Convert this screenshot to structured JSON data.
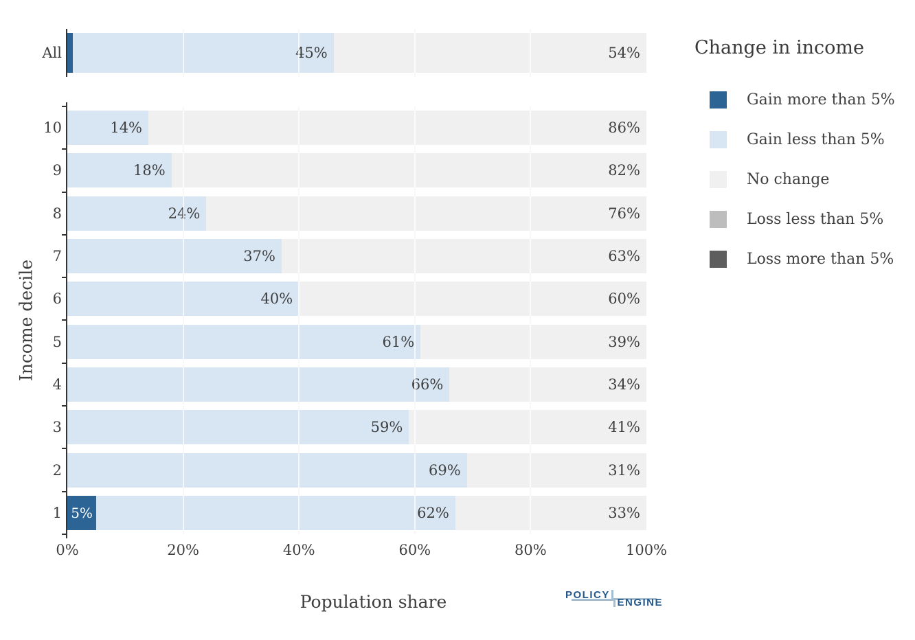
{
  "chart_data": {
    "type": "bar",
    "orientation": "horizontal",
    "stacked": true,
    "title": "",
    "xlabel": "Population share",
    "ylabel": "Income decile",
    "xlim": [
      0,
      100
    ],
    "x_ticks": [
      "0%",
      "20%",
      "40%",
      "60%",
      "80%",
      "100%"
    ],
    "gridline_positions_pct": [
      20,
      40,
      60,
      80
    ],
    "legend_title": "Change in income",
    "legend": [
      {
        "label": "Gain more than 5%",
        "color": "#2C6496"
      },
      {
        "label": "Gain less than 5%",
        "color": "#D8E6F3"
      },
      {
        "label": "No change",
        "color": "#F0F0F0"
      },
      {
        "label": "Loss less than 5%",
        "color": "#BDBDBD"
      },
      {
        "label": "Loss more than 5%",
        "color": "#5E5E5E"
      }
    ],
    "categories": [
      "All",
      "10",
      "9",
      "8",
      "7",
      "6",
      "5",
      "4",
      "3",
      "2",
      "1"
    ],
    "series": [
      {
        "name": "Gain more than 5%",
        "values": [
          1,
          0,
          0,
          0,
          0,
          0,
          0,
          0,
          0,
          0,
          5
        ]
      },
      {
        "name": "Gain less than 5%",
        "values": [
          45,
          14,
          18,
          24,
          37,
          40,
          61,
          66,
          59,
          69,
          62
        ]
      },
      {
        "name": "No change",
        "values": [
          54,
          86,
          82,
          76,
          63,
          60,
          39,
          34,
          41,
          31,
          33
        ]
      },
      {
        "name": "Loss less than 5%",
        "values": [
          0,
          0,
          0,
          0,
          0,
          0,
          0,
          0,
          0,
          0,
          0
        ]
      },
      {
        "name": "Loss more than 5%",
        "values": [
          0,
          0,
          0,
          0,
          0,
          0,
          0,
          0,
          0,
          0,
          0
        ]
      }
    ],
    "rows": [
      {
        "label": "All",
        "gain_more": 1,
        "gain_more_label": "",
        "gain_less": 45,
        "gain_less_label": "45%",
        "no_change": 54,
        "no_change_label": "54%"
      },
      {
        "label": "10",
        "gain_more": 0,
        "gain_more_label": "",
        "gain_less": 14,
        "gain_less_label": "14%",
        "no_change": 86,
        "no_change_label": "86%"
      },
      {
        "label": "9",
        "gain_more": 0,
        "gain_more_label": "",
        "gain_less": 18,
        "gain_less_label": "18%",
        "no_change": 82,
        "no_change_label": "82%"
      },
      {
        "label": "8",
        "gain_more": 0,
        "gain_more_label": "",
        "gain_less": 24,
        "gain_less_label": "24%",
        "no_change": 76,
        "no_change_label": "76%"
      },
      {
        "label": "7",
        "gain_more": 0,
        "gain_more_label": "",
        "gain_less": 37,
        "gain_less_label": "37%",
        "no_change": 63,
        "no_change_label": "63%"
      },
      {
        "label": "6",
        "gain_more": 0,
        "gain_more_label": "",
        "gain_less": 40,
        "gain_less_label": "40%",
        "no_change": 60,
        "no_change_label": "60%"
      },
      {
        "label": "5",
        "gain_more": 0,
        "gain_more_label": "",
        "gain_less": 61,
        "gain_less_label": "61%",
        "no_change": 39,
        "no_change_label": "39%"
      },
      {
        "label": "4",
        "gain_more": 0,
        "gain_more_label": "",
        "gain_less": 66,
        "gain_less_label": "66%",
        "no_change": 34,
        "no_change_label": "34%"
      },
      {
        "label": "3",
        "gain_more": 0,
        "gain_more_label": "",
        "gain_less": 59,
        "gain_less_label": "59%",
        "no_change": 41,
        "no_change_label": "41%"
      },
      {
        "label": "2",
        "gain_more": 0,
        "gain_more_label": "",
        "gain_less": 69,
        "gain_less_label": "69%",
        "no_change": 31,
        "no_change_label": "31%"
      },
      {
        "label": "1",
        "gain_more": 5,
        "gain_more_label": "5%",
        "gain_less": 62,
        "gain_less_label": "62%",
        "no_change": 33,
        "no_change_label": "33%"
      }
    ]
  },
  "branding": {
    "logo_top": "POLICY",
    "logo_bottom": "ENGINE",
    "logo_text_color": "#23598C",
    "logo_line_color": "#A4BDD1"
  }
}
